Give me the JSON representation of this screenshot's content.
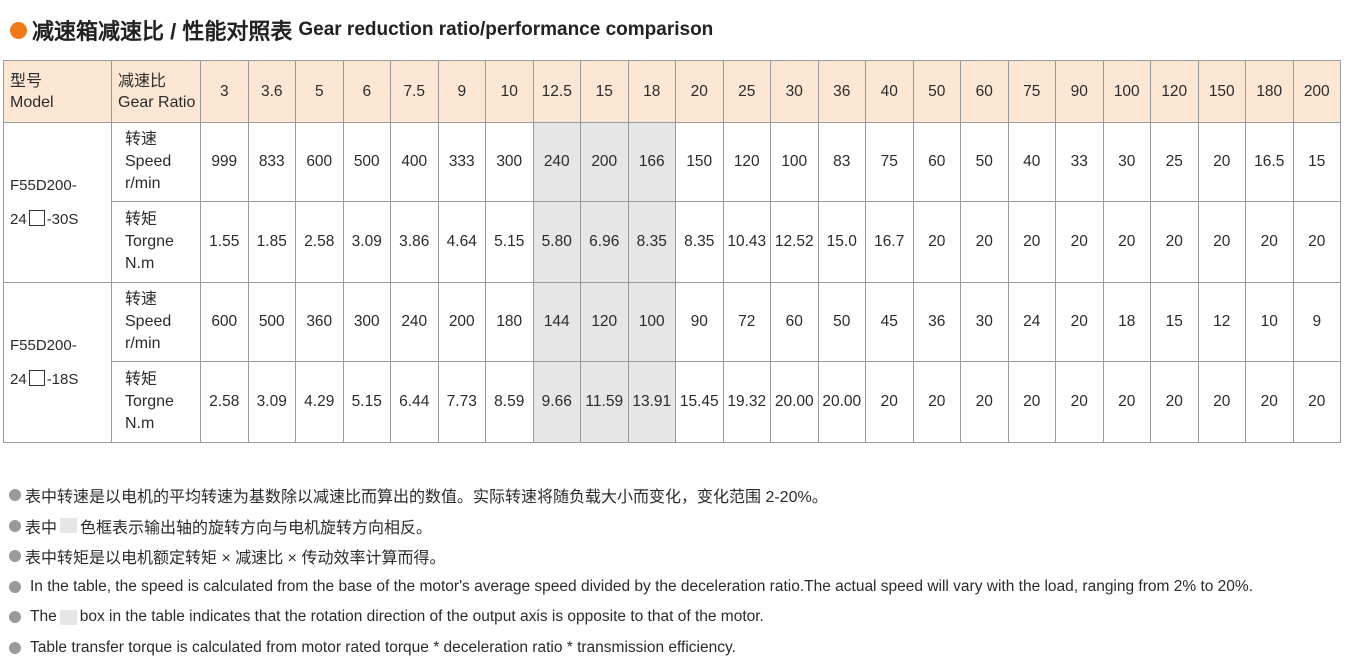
{
  "title": {
    "cn": "减速箱减速比 / 性能对照表",
    "en": "Gear reduction ratio/performance comparison"
  },
  "header": {
    "model_cn": "型号",
    "model_en": "Model",
    "ratio_cn": "减速比",
    "ratio_en": "Gear Ratio",
    "ratios": [
      "3",
      "3.6",
      "5",
      "6",
      "7.5",
      "9",
      "10",
      "12.5",
      "15",
      "18",
      "20",
      "25",
      "30",
      "36",
      "40",
      "50",
      "60",
      "75",
      "90",
      "100",
      "120",
      "150",
      "180",
      "200"
    ]
  },
  "shaded_ratios": [
    "12.5",
    "15",
    "18"
  ],
  "labels": {
    "speed_cn": "转速",
    "speed_en": "Speed",
    "speed_unit": "r/min",
    "torque_cn": "转矩",
    "torque_en": "Torgne",
    "torque_unit": "N.m"
  },
  "models": [
    {
      "name_line1": "F55D200-",
      "name_line2_pre": "24",
      "name_line2_post": "-30S",
      "speed": [
        "999",
        "833",
        "600",
        "500",
        "400",
        "333",
        "300",
        "240",
        "200",
        "166",
        "150",
        "120",
        "100",
        "83",
        "75",
        "60",
        "50",
        "40",
        "33",
        "30",
        "25",
        "20",
        "16.5",
        "15"
      ],
      "torque": [
        "1.55",
        "1.85",
        "2.58",
        "3.09",
        "3.86",
        "4.64",
        "5.15",
        "5.80",
        "6.96",
        "8.35",
        "8.35",
        "10.43",
        "12.52",
        "15.0",
        "16.7",
        "20",
        "20",
        "20",
        "20",
        "20",
        "20",
        "20",
        "20",
        "20"
      ]
    },
    {
      "name_line1": "F55D200-",
      "name_line2_pre": "24",
      "name_line2_post": "-18S",
      "speed": [
        "600",
        "500",
        "360",
        "300",
        "240",
        "200",
        "180",
        "144",
        "120",
        "100",
        "90",
        "72",
        "60",
        "50",
        "45",
        "36",
        "30",
        "24",
        "20",
        "18",
        "15",
        "12",
        "10",
        "9"
      ],
      "torque": [
        "2.58",
        "3.09",
        "4.29",
        "5.15",
        "6.44",
        "7.73",
        "8.59",
        "9.66",
        "11.59",
        "13.91",
        "15.45",
        "19.32",
        "20.00",
        "20.00",
        "20",
        "20",
        "20",
        "20",
        "20",
        "20",
        "20",
        "20",
        "20",
        "20"
      ]
    }
  ],
  "notes": {
    "cn1": "表中转速是以电机的平均转速为基数除以减速比而算出的数值。实际转速将随负载大小而变化，变化范围 2-20%。",
    "cn2_pre": "表中",
    "cn2_post": "色框表示输出轴的旋转方向与电机旋转方向相反。",
    "cn3": "表中转矩是以电机额定转矩 × 减速比 × 传动效率计算而得。",
    "en1": "In the table, the speed is calculated from the base of the motor's average speed  divided by the deceleration ratio.The actual speed will vary with the load, ranging from 2% to 20%.",
    "en2_pre": "The",
    "en2_post": "box in the table indicates that the rotation direction of the output axis is opposite to that of the motor.",
    "en3": "Table transfer torque is calculated from motor rated torque * deceleration ratio * transmission efficiency."
  },
  "colors": {
    "accent_dot": "#f07a1a",
    "header_bg": "#fbe7d3",
    "shade": "#e6e6e6"
  }
}
